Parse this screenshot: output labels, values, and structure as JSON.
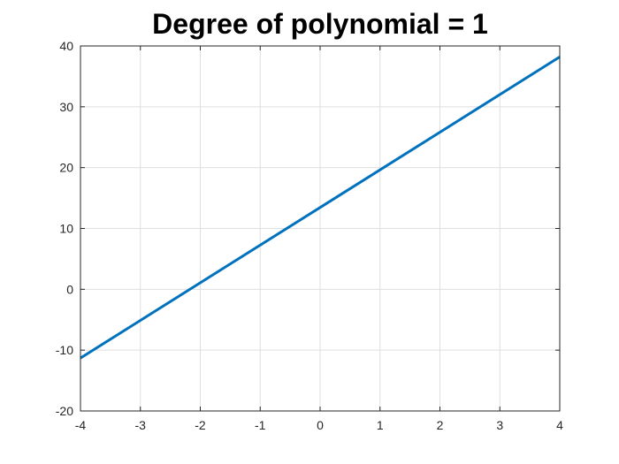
{
  "chart_data": {
    "type": "line",
    "title": "Degree of polynomial = 1",
    "xlabel": "",
    "ylabel": "",
    "xlim": [
      -4,
      4
    ],
    "ylim": [
      -20,
      40
    ],
    "xticks": [
      "-4",
      "-3",
      "-2",
      "-1",
      "0",
      "1",
      "2",
      "3",
      "4"
    ],
    "yticks": [
      "-20",
      "-10",
      "0",
      "10",
      "20",
      "30",
      "40"
    ],
    "grid": true,
    "series": [
      {
        "x": [
          -4,
          4
        ],
        "y": [
          -11.3,
          38.2
        ],
        "color": "#0072BD"
      }
    ]
  }
}
